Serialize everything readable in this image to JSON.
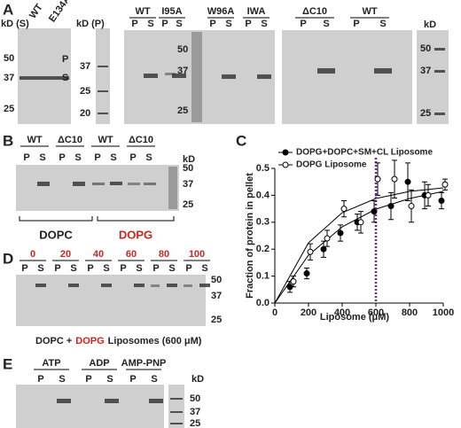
{
  "panel_labels": [
    "A",
    "B",
    "C",
    "D",
    "E"
  ],
  "panel_a": {
    "gel1": {
      "marker_header": "kD (S)",
      "samples": [
        "WT",
        "E134A"
      ],
      "markers": [
        50,
        37,
        25
      ],
      "band_labels": [
        "P",
        "S"
      ]
    },
    "gel2": {
      "marker_header": "kD (P)",
      "markers": [
        37,
        25,
        20
      ]
    },
    "gel3": {
      "groups": [
        "WT",
        "I95A",
        "W96A",
        "IWA"
      ],
      "lanes": [
        "P",
        "S",
        "P",
        "S",
        "P",
        "S",
        "P",
        "S"
      ],
      "markers": [
        50,
        37,
        25
      ]
    },
    "gel4": {
      "groups": [
        "ΔC10",
        "WT"
      ],
      "lanes": [
        "P",
        "S",
        "P",
        "S"
      ]
    },
    "gel5": {
      "marker_header": "kD",
      "markers": [
        50,
        37,
        25
      ]
    }
  },
  "panel_b": {
    "groups": [
      "WT",
      "ΔC10",
      "WT",
      "ΔC10"
    ],
    "lanes": [
      "P",
      "S",
      "P",
      "S",
      "P",
      "S",
      "P",
      "S"
    ],
    "marker_header": "kD",
    "markers": [
      50,
      37,
      25
    ],
    "lipids": [
      "DOPC",
      "DOPG"
    ]
  },
  "chart_data": {
    "type": "scatter",
    "x": [
      100,
      200,
      300,
      400,
      500,
      600,
      700,
      800,
      900,
      1000
    ],
    "series": [
      {
        "name": "DOPG+DOPC+SM+CL Liposome",
        "color": "#000000",
        "marker": "filled",
        "values": [
          0.06,
          0.11,
          0.2,
          0.26,
          0.3,
          0.34,
          0.36,
          0.45,
          0.4,
          0.38
        ],
        "errors": [
          0.02,
          0.02,
          0.03,
          0.03,
          0.03,
          0.04,
          0.05,
          0.07,
          0.05,
          0.03
        ]
      },
      {
        "name": "DOPG Liposome",
        "color": "#000000",
        "marker": "open",
        "values": [
          0.08,
          0.19,
          0.24,
          0.35,
          0.3,
          0.46,
          0.46,
          0.36,
          0.4,
          0.44
        ],
        "errors": [
          0.02,
          0.03,
          0.03,
          0.03,
          0.04,
          0.06,
          0.07,
          0.06,
          0.04,
          0.02
        ]
      }
    ],
    "xlabel": "Liposome (μM)",
    "ylabel": "Fraction of protein in pellet",
    "xlim": [
      0,
      1000
    ],
    "xticks": [
      0,
      200,
      400,
      600,
      800,
      1000
    ],
    "ylim": [
      0,
      0.5
    ],
    "yticks": [
      {
        "value": 0,
        "label": "0.0"
      },
      0.1,
      0.2,
      0.3,
      0.4,
      0.5
    ],
    "reference_x": 600,
    "reference_color": "#6a2c91"
  },
  "panel_d": {
    "groups": [
      0,
      20,
      40,
      60,
      80,
      100
    ],
    "lanes": [
      "P",
      "S",
      "P",
      "S",
      "P",
      "S",
      "P",
      "S",
      "P",
      "S",
      "P",
      "S"
    ],
    "markers": [
      50,
      37,
      25
    ],
    "caption": [
      "DOPC +",
      "DOPG",
      "Liposomes (600 μM)"
    ]
  },
  "panel_e": {
    "groups": [
      "ATP",
      "ADP",
      "AMP-PNP"
    ],
    "lanes": [
      "P",
      "S",
      "P",
      "S",
      "P",
      "S"
    ],
    "marker_header": "kD",
    "markers": [
      50,
      37,
      25
    ]
  }
}
